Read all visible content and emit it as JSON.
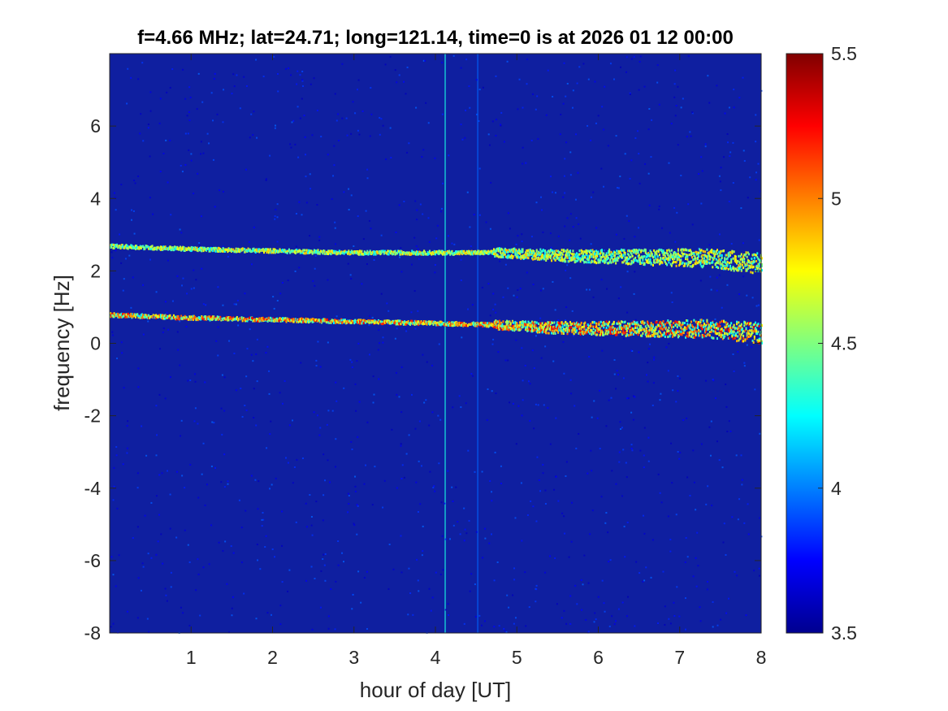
{
  "chart_data": {
    "type": "heatmap",
    "title": "f=4.66 MHz;  lat=24.71; long=121.14, time=0 is at 2026 01 12 00:00",
    "xlabel": "hour of day [UT]",
    "ylabel": "frequency [Hz]",
    "xlim": [
      0,
      8
    ],
    "ylim": [
      -8,
      8
    ],
    "x_ticks": [
      1,
      2,
      3,
      4,
      5,
      6,
      7,
      8
    ],
    "x_tick_labels": [
      "1",
      "2",
      "3",
      "4",
      "5",
      "6",
      "7",
      "8"
    ],
    "y_ticks": [
      -8,
      -6,
      -4,
      -2,
      0,
      2,
      4,
      6
    ],
    "y_tick_labels": [
      "-8",
      "-6",
      "-4",
      "-2",
      "0",
      "2",
      "4",
      "6"
    ],
    "colorbar": {
      "colormap": "jet",
      "clim": [
        3.5,
        5.5
      ],
      "ticks": [
        3.5,
        4,
        4.5,
        5,
        5.5
      ],
      "tick_labels": [
        "3.5",
        "4",
        "4.5",
        "5",
        "5.5"
      ]
    },
    "background_level": 3.6,
    "features": [
      {
        "kind": "trace",
        "points": [
          [
            0.0,
            2.68
          ],
          [
            1.0,
            2.6
          ],
          [
            2.0,
            2.55
          ],
          [
            3.0,
            2.5
          ],
          [
            4.0,
            2.5
          ],
          [
            4.8,
            2.5
          ],
          [
            5.5,
            2.42
          ],
          [
            6.5,
            2.38
          ],
          [
            7.3,
            2.35
          ],
          [
            8.0,
            2.2
          ]
        ],
        "peak_level": 4.9
      },
      {
        "kind": "trace",
        "points": [
          [
            0.0,
            0.78
          ],
          [
            1.0,
            0.7
          ],
          [
            2.0,
            0.65
          ],
          [
            3.0,
            0.6
          ],
          [
            4.0,
            0.55
          ],
          [
            4.8,
            0.5
          ],
          [
            5.5,
            0.42
          ],
          [
            6.5,
            0.4
          ],
          [
            7.3,
            0.4
          ],
          [
            8.0,
            0.28
          ]
        ],
        "peak_level": 5.3
      },
      {
        "kind": "vertical_line",
        "x": 4.12,
        "peak_level": 4.3
      },
      {
        "kind": "vertical_line",
        "x": 4.52,
        "peak_level": 3.95
      }
    ]
  }
}
